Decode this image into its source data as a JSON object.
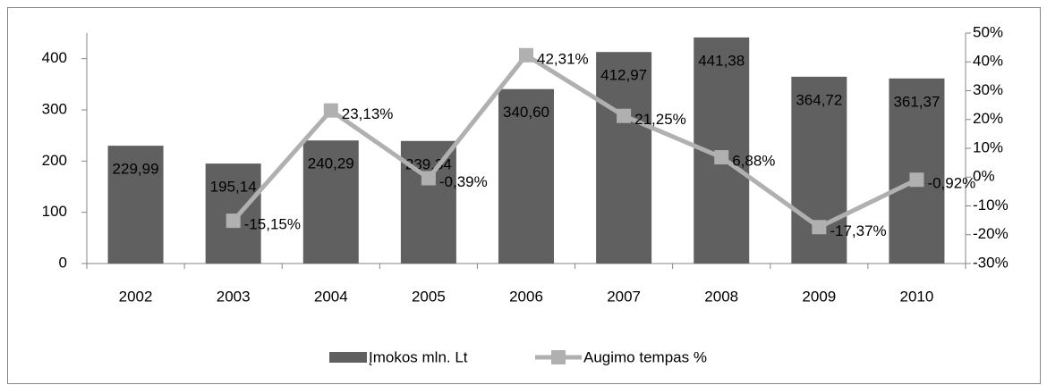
{
  "chart_data": {
    "type": "bar+line",
    "categories": [
      "2002",
      "2003",
      "2004",
      "2005",
      "2006",
      "2007",
      "2008",
      "2009",
      "2010"
    ],
    "series": [
      {
        "name": "Įmokos mln. Lt",
        "type": "bar",
        "color": "#606060",
        "values": [
          229.99,
          195.14,
          240.29,
          239.34,
          340.6,
          412.97,
          441.38,
          364.72,
          361.37
        ],
        "value_labels": [
          "229,99",
          "195,14",
          "240,29",
          "239,34",
          "340,60",
          "412,97",
          "441,38",
          "364,72",
          "361,37"
        ]
      },
      {
        "name": "Augimo tempas %",
        "type": "line",
        "axis": "y2",
        "color": "#b0b0b0",
        "values": [
          null,
          -15.15,
          23.13,
          -0.39,
          42.31,
          21.25,
          6.88,
          -17.37,
          -0.92
        ],
        "value_labels": [
          null,
          "-15,15%",
          "23,13%",
          "-0,39%",
          "42,31%",
          "21,25%",
          "6,88%",
          "-17,37%",
          "-0,92%"
        ]
      }
    ],
    "ylim": [
      0,
      450
    ],
    "yticks": [
      0,
      100,
      200,
      300,
      400
    ],
    "y2lim": [
      -30,
      50
    ],
    "y2ticks": [
      {
        "value": -30,
        "label": "-30%"
      },
      {
        "value": -20,
        "label": "-20%"
      },
      {
        "value": -10,
        "label": "-10%"
      },
      {
        "value": 0,
        "label": "0%"
      },
      {
        "value": 10,
        "label": "10%"
      },
      {
        "value": 20,
        "label": "20%"
      },
      {
        "value": 30,
        "label": "30%"
      },
      {
        "value": 40,
        "label": "40%"
      },
      {
        "value": 50,
        "label": "50%"
      }
    ],
    "legend": "bottom"
  }
}
